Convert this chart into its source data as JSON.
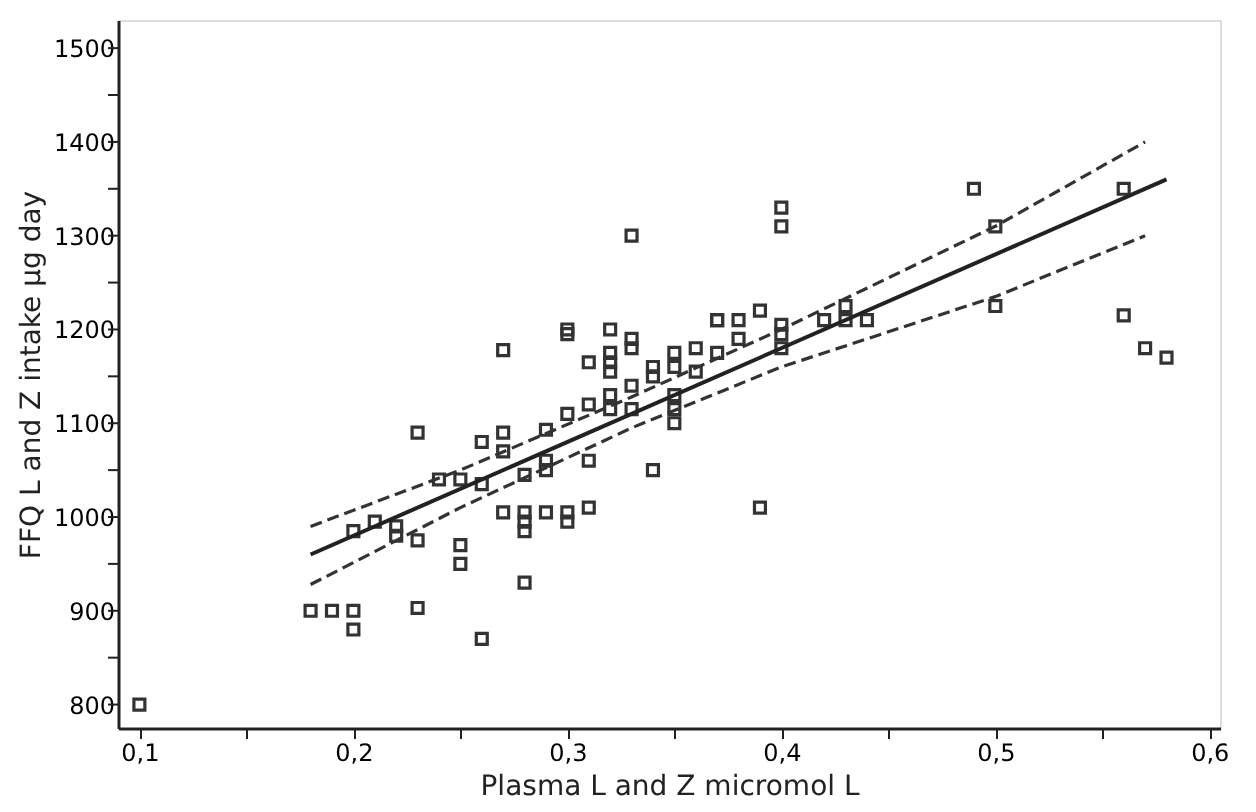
{
  "chart_data": {
    "type": "scatter",
    "xlabel": "Plasma L and Z micromol L",
    "ylabel": "FFQ L and Z intake µg day",
    "grid": false,
    "xlim": [
      0.09,
      0.605
    ],
    "ylim": [
      775,
      1530
    ],
    "xticks": [
      {
        "value": 0.1,
        "label": "0,1"
      },
      {
        "value": 0.15,
        "label": null
      },
      {
        "value": 0.2,
        "label": "0,2"
      },
      {
        "value": 0.25,
        "label": null
      },
      {
        "value": 0.3,
        "label": "0,3"
      },
      {
        "value": 0.35,
        "label": null
      },
      {
        "value": 0.4,
        "label": "0,4"
      },
      {
        "value": 0.45,
        "label": null
      },
      {
        "value": 0.5,
        "label": "0,5"
      },
      {
        "value": 0.55,
        "label": null
      },
      {
        "value": 0.6,
        "label": "0,6"
      }
    ],
    "yticks": [
      800,
      {
        "value": 850,
        "label": null
      },
      900,
      {
        "value": 950,
        "label": null
      },
      1000,
      {
        "value": 1050,
        "label": null
      },
      1100,
      {
        "value": 1150,
        "label": null
      },
      1200,
      {
        "value": 1250,
        "label": null
      },
      1300,
      {
        "value": 1350,
        "label": null
      },
      1400,
      {
        "value": 1450,
        "label": null
      },
      1500
    ],
    "series": [
      {
        "marker": "square",
        "color": "#333333",
        "x": [
          0.1,
          0.18,
          0.19,
          0.2,
          0.2,
          0.2,
          0.21,
          0.22,
          0.22,
          0.23,
          0.23,
          0.23,
          0.24,
          0.25,
          0.25,
          0.25,
          0.26,
          0.26,
          0.26,
          0.27,
          0.27,
          0.27,
          0.27,
          0.28,
          0.28,
          0.28,
          0.28,
          0.28,
          0.29,
          0.29,
          0.29,
          0.29,
          0.3,
          0.3,
          0.3,
          0.3,
          0.3,
          0.31,
          0.31,
          0.31,
          0.31,
          0.32,
          0.32,
          0.32,
          0.32,
          0.32,
          0.32,
          0.33,
          0.33,
          0.33,
          0.33,
          0.33,
          0.34,
          0.34,
          0.34,
          0.35,
          0.35,
          0.35,
          0.35,
          0.35,
          0.36,
          0.36,
          0.37,
          0.37,
          0.37,
          0.38,
          0.38,
          0.39,
          0.39,
          0.4,
          0.4,
          0.4,
          0.4,
          0.4,
          0.42,
          0.43,
          0.43,
          0.44,
          0.49,
          0.5,
          0.5,
          0.56,
          0.56,
          0.57,
          0.58
        ],
        "values": [
          800,
          900,
          900,
          900,
          880,
          985,
          995,
          990,
          980,
          975,
          1090,
          903,
          1040,
          1040,
          970,
          950,
          1035,
          870,
          1080,
          1090,
          1070,
          1178,
          1005,
          1005,
          995,
          985,
          930,
          1045,
          1060,
          1050,
          1093,
          1005,
          995,
          1005,
          1110,
          1200,
          1195,
          1120,
          1060,
          1010,
          1165,
          1200,
          1175,
          1165,
          1155,
          1130,
          1115,
          1300,
          1190,
          1180,
          1140,
          1115,
          1160,
          1050,
          1150,
          1175,
          1160,
          1130,
          1115,
          1100,
          1180,
          1155,
          1210,
          1210,
          1175,
          1210,
          1190,
          1220,
          1010,
          1330,
          1310,
          1205,
          1195,
          1180,
          1210,
          1210,
          1225,
          1210,
          1350,
          1310,
          1225,
          1350,
          1215,
          1180,
          1170
        ]
      },
      {
        "type": "line",
        "line_style": "solid",
        "color": "#222222",
        "x": [
          0.18,
          0.58
        ],
        "values": [
          960,
          1360
        ]
      },
      {
        "type": "line",
        "line_style": "dashed",
        "color": "#333333",
        "x": [
          0.18,
          0.25,
          0.33,
          0.4,
          0.5,
          0.57
        ],
        "values": [
          990,
          1050,
          1128,
          1200,
          1310,
          1400
        ]
      },
      {
        "type": "line",
        "line_style": "dashed",
        "color": "#333333",
        "x": [
          0.18,
          0.25,
          0.33,
          0.4,
          0.5,
          0.57
        ],
        "values": [
          928,
          1010,
          1095,
          1160,
          1235,
          1300
        ]
      }
    ]
  }
}
